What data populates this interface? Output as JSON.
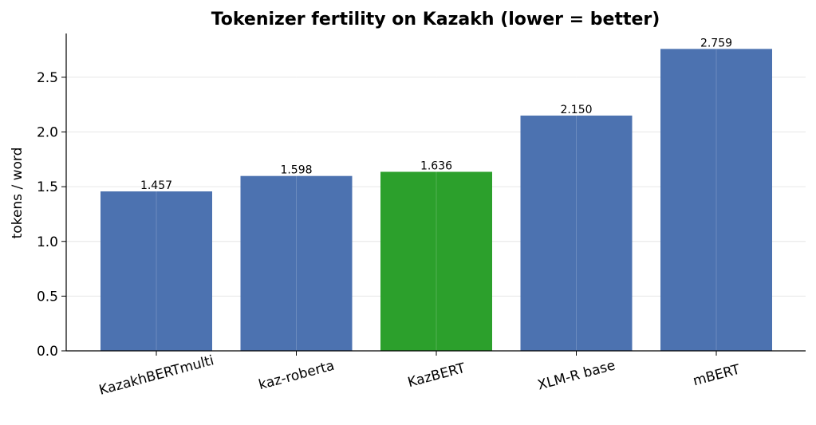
{
  "chart_data": {
    "type": "bar",
    "title": "Tokenizer fertility on Kazakh (lower = better)",
    "xlabel": "",
    "ylabel": "tokens / word",
    "categories": [
      "KazakhBERTmulti",
      "kaz-roberta",
      "KazBERT",
      "XLM-R base",
      "mBERT"
    ],
    "values": [
      1.457,
      1.598,
      1.636,
      2.15,
      2.759
    ],
    "value_labels": [
      "1.457",
      "1.598",
      "1.636",
      "2.150",
      "2.759"
    ],
    "bar_colors": [
      "#4c72b0",
      "#4c72b0",
      "#2ca02c",
      "#4c72b0",
      "#4c72b0"
    ],
    "ylim": [
      0,
      2.9
    ],
    "yticks": [
      0.0,
      0.5,
      1.0,
      1.5,
      2.0,
      2.5
    ],
    "ytick_labels": [
      "0.0",
      "0.5",
      "1.0",
      "1.5",
      "2.0",
      "2.5"
    ],
    "grid": true,
    "x_tick_rotation_deg": 15
  }
}
